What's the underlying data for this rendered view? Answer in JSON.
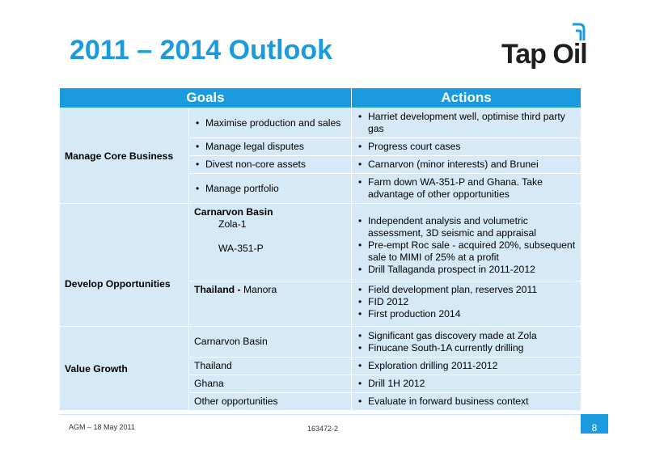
{
  "header": {
    "title": "2011 – 2014 Outlook"
  },
  "logo": {
    "text": "Tap Oil"
  },
  "table": {
    "col_goals": "Goals",
    "col_actions": "Actions",
    "manage": {
      "goal": "Manage Core Business",
      "rows": [
        {
          "sub": "Maximise production and sales",
          "action": "Harriet development well, optimise third party gas"
        },
        {
          "sub": "Manage legal disputes",
          "action": "Progress court cases"
        },
        {
          "sub": "Divest non-core assets",
          "action": "Carnarvon (minor interests) and Brunei"
        },
        {
          "sub": "Manage portfolio",
          "action": "Farm down WA-351-P and Ghana. Take advantage of other opportunities"
        }
      ]
    },
    "develop": {
      "goal": "Develop Opportunities",
      "carnarvon_head": "Carnarvon Basin",
      "zola": "Zola-1",
      "wa": "WA-351-P",
      "carnarvon_actions": [
        "Independent analysis and volumetric assessment, 3D seismic and appraisal",
        "Pre-empt Roc sale - acquired 20%, subsequent sale to MIMI of 25% at a profit",
        "Drill Tallaganda prospect in 2011-2012"
      ],
      "thailand_bold": "Thailand -",
      "thailand_rest": " Manora",
      "thailand_actions": [
        "Field development plan, reserves 2011",
        "FID 2012",
        "First production 2014"
      ]
    },
    "value": {
      "goal": "Value Growth",
      "rows": [
        {
          "sub": "Carnarvon Basin",
          "actions": [
            "Significant gas discovery made at Zola",
            "Finucane South-1A currently drilling"
          ]
        },
        {
          "sub": "Thailand",
          "actions": [
            "Exploration drilling 2011-2012"
          ]
        },
        {
          "sub": "Ghana",
          "actions": [
            "Drill 1H 2012"
          ]
        },
        {
          "sub": "Other opportunities",
          "actions": [
            "Evaluate in forward business context"
          ]
        }
      ]
    }
  },
  "footer": {
    "left": "AGM – 18 May 2011",
    "middle": "163472-2",
    "page": "8"
  },
  "colors": {
    "accent": "#1a9be0",
    "cell": "#d6e9f7"
  }
}
